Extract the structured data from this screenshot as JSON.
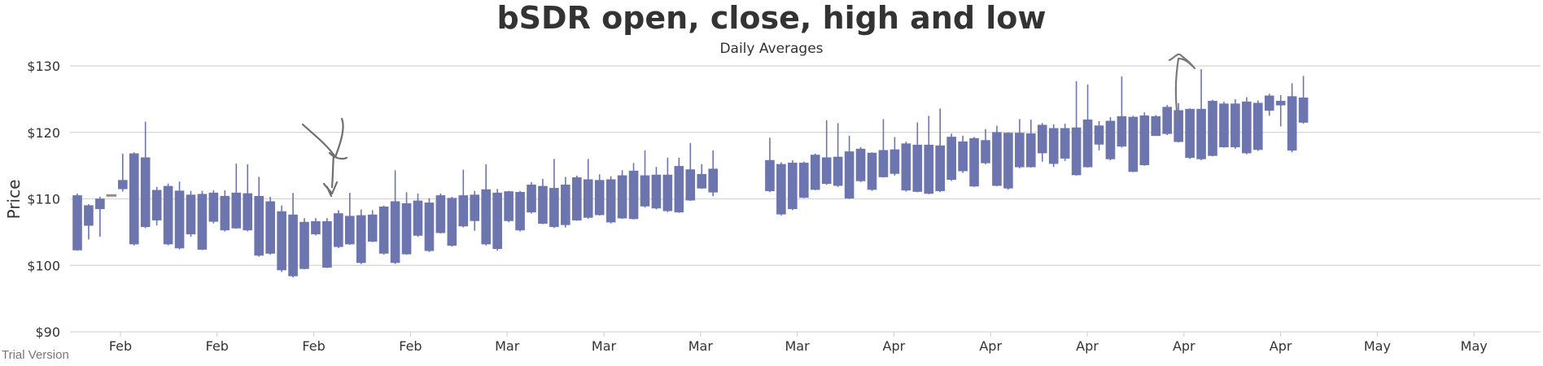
{
  "chart_data": {
    "type": "candlestick",
    "title": "bSDR open, close, high and low",
    "subtitle": "Daily Averages",
    "xlabel": "",
    "ylabel": "Price",
    "ylim": [
      90,
      130
    ],
    "y_ticks": [
      "$90",
      "$100",
      "$110",
      "$120",
      "$130"
    ],
    "x_ticks": [
      "Feb",
      "Feb",
      "Feb",
      "Feb",
      "Mar",
      "Mar",
      "Mar",
      "Mar",
      "Apr",
      "Apr",
      "Apr",
      "Apr",
      "Apr",
      "May",
      "May"
    ],
    "grid": true,
    "colors": {
      "bearish": "#6c75ad",
      "bullish": "#ffffff",
      "bullish_border": "#888888",
      "grid": "#d5d5d5",
      "text": "#333333"
    },
    "series": [
      {
        "ohlc": [
          [
            110.5,
            102.3,
            110.8,
            102.2
          ],
          [
            109.0,
            106.0,
            109.2,
            103.9
          ],
          [
            110.0,
            108.5,
            110.3,
            104.3
          ],
          [
            110.6,
            110.6,
            110.6,
            110.6
          ],
          [
            112.8,
            111.5,
            116.8,
            111.1
          ],
          [
            116.8,
            103.2,
            117.0,
            103.0
          ],
          [
            116.2,
            105.8,
            121.6,
            105.6
          ],
          [
            111.3,
            106.8,
            111.8,
            106.0
          ],
          [
            111.9,
            103.2,
            112.3,
            103.0
          ],
          [
            111.2,
            102.6,
            112.6,
            102.4
          ],
          [
            110.6,
            104.7,
            111.2,
            104.3
          ],
          [
            110.7,
            102.4,
            111.2,
            102.3
          ],
          [
            110.9,
            106.6,
            111.3,
            106.3
          ],
          [
            110.4,
            105.3,
            111.3,
            105.1
          ],
          [
            110.9,
            105.6,
            115.3,
            105.5
          ],
          [
            110.8,
            105.3,
            115.2,
            105.1
          ],
          [
            110.4,
            101.5,
            113.3,
            101.3
          ],
          [
            109.6,
            101.8,
            110.3,
            101.6
          ],
          [
            108.1,
            99.3,
            109.0,
            99.0
          ],
          [
            107.6,
            98.4,
            110.9,
            98.2
          ],
          [
            106.5,
            99.5,
            107.1,
            99.4
          ],
          [
            106.6,
            104.7,
            107.1,
            104.5
          ],
          [
            106.6,
            99.7,
            107.1,
            99.6
          ],
          [
            107.8,
            102.8,
            108.3,
            102.6
          ],
          [
            107.4,
            103.2,
            110.9,
            103.1
          ],
          [
            107.5,
            100.4,
            108.4,
            100.2
          ],
          [
            107.6,
            103.6,
            108.3,
            103.5
          ],
          [
            108.8,
            101.8,
            109.0,
            101.6
          ],
          [
            109.6,
            100.4,
            114.3,
            100.2
          ],
          [
            109.3,
            101.7,
            111.0,
            101.6
          ],
          [
            109.7,
            104.5,
            110.8,
            104.3
          ],
          [
            109.4,
            102.2,
            110.1,
            102.0
          ],
          [
            110.5,
            104.9,
            110.8,
            104.8
          ],
          [
            110.1,
            103.0,
            110.3,
            102.8
          ],
          [
            110.5,
            105.9,
            114.4,
            105.7
          ],
          [
            110.6,
            106.7,
            111.2,
            105.2
          ],
          [
            111.4,
            103.2,
            115.2,
            103.0
          ],
          [
            110.9,
            102.5,
            111.5,
            102.2
          ],
          [
            111.1,
            106.7,
            111.2,
            106.5
          ],
          [
            111.0,
            105.3,
            111.2,
            105.1
          ],
          [
            112.1,
            108.0,
            112.5,
            107.8
          ],
          [
            111.9,
            106.3,
            113.0,
            106.2
          ],
          [
            111.6,
            105.8,
            116.0,
            105.6
          ],
          [
            112.1,
            106.1,
            113.3,
            105.7
          ],
          [
            113.2,
            106.8,
            113.5,
            106.7
          ],
          [
            112.9,
            107.2,
            116.0,
            107.0
          ],
          [
            112.8,
            107.6,
            113.7,
            107.5
          ],
          [
            112.9,
            106.5,
            113.4,
            106.3
          ],
          [
            113.5,
            107.1,
            114.3,
            107.0
          ],
          [
            114.2,
            107.0,
            115.4,
            106.9
          ],
          [
            113.5,
            108.9,
            117.3,
            108.7
          ],
          [
            113.6,
            108.6,
            114.8,
            108.4
          ],
          [
            113.6,
            108.2,
            116.2,
            108.0
          ],
          [
            114.9,
            108.0,
            116.2,
            107.9
          ],
          [
            114.4,
            109.8,
            118.4,
            109.7
          ],
          [
            113.7,
            111.6,
            115.2,
            111.5
          ],
          [
            114.5,
            111.0,
            117.3,
            110.4
          ],
          [
            115.8,
            111.2,
            119.2,
            111.0
          ],
          [
            115.2,
            107.7,
            115.5,
            107.5
          ],
          [
            115.4,
            108.5,
            115.8,
            108.3
          ],
          [
            115.4,
            110.2,
            115.6,
            110.1
          ],
          [
            116.6,
            111.4,
            116.8,
            111.3
          ],
          [
            116.2,
            112.3,
            121.8,
            112.1
          ],
          [
            116.3,
            112.0,
            121.4,
            111.8
          ],
          [
            117.1,
            110.1,
            119.5,
            110.0
          ],
          [
            117.5,
            112.7,
            117.8,
            112.5
          ],
          [
            116.9,
            111.4,
            117.0,
            111.2
          ],
          [
            117.3,
            113.3,
            122.0,
            113.2
          ],
          [
            117.4,
            113.8,
            119.3,
            113.5
          ],
          [
            118.3,
            111.3,
            118.6,
            111.1
          ],
          [
            118.1,
            111.1,
            121.5,
            111.0
          ],
          [
            118.1,
            110.8,
            122.5,
            110.7
          ],
          [
            118.0,
            111.2,
            123.6,
            111.0
          ],
          [
            119.3,
            112.9,
            119.8,
            112.7
          ],
          [
            118.6,
            114.2,
            119.5,
            113.9
          ],
          [
            119.1,
            111.9,
            119.3,
            111.8
          ],
          [
            118.8,
            115.4,
            120.5,
            115.2
          ],
          [
            120.0,
            112.0,
            121.0,
            111.9
          ],
          [
            119.9,
            111.6,
            120.0,
            111.4
          ],
          [
            119.9,
            114.8,
            122.0,
            114.6
          ],
          [
            119.8,
            114.8,
            121.9,
            114.7
          ],
          [
            121.1,
            116.9,
            121.4,
            115.6
          ],
          [
            120.6,
            115.3,
            121.2,
            114.8
          ],
          [
            120.6,
            116.1,
            121.3,
            115.7
          ],
          [
            120.7,
            113.6,
            127.7,
            113.5
          ],
          [
            121.9,
            114.8,
            127.2,
            114.7
          ],
          [
            121.0,
            118.2,
            121.7,
            117.3
          ],
          [
            121.7,
            116.0,
            122.3,
            115.8
          ],
          [
            122.4,
            117.9,
            128.4,
            117.7
          ],
          [
            122.3,
            114.1,
            122.5,
            114.0
          ],
          [
            122.5,
            115.1,
            123.0,
            115.0
          ],
          [
            122.4,
            119.5,
            122.6,
            119.5
          ],
          [
            123.8,
            119.8,
            124.1,
            119.6
          ],
          [
            123.3,
            118.6,
            124.4,
            118.5
          ],
          [
            123.5,
            116.2,
            123.6,
            116.0
          ],
          [
            123.5,
            116.0,
            129.5,
            115.8
          ],
          [
            124.7,
            116.5,
            124.9,
            116.4
          ],
          [
            124.3,
            117.8,
            124.6,
            117.7
          ],
          [
            124.3,
            117.8,
            125.0,
            117.5
          ],
          [
            124.6,
            116.9,
            125.3,
            116.7
          ],
          [
            124.4,
            117.4,
            124.8,
            117.2
          ],
          [
            125.5,
            123.3,
            125.8,
            122.5
          ],
          [
            124.7,
            124.1,
            125.6,
            120.9
          ],
          [
            125.4,
            117.3,
            127.4,
            117.0
          ],
          [
            125.2,
            121.5,
            128.5,
            121.3
          ]
        ]
      }
    ]
  },
  "annotations": {
    "arrow_down": "hand-drawn-arrow",
    "arrow_up": "hand-drawn-arrow"
  },
  "watermark": "Trial Version"
}
